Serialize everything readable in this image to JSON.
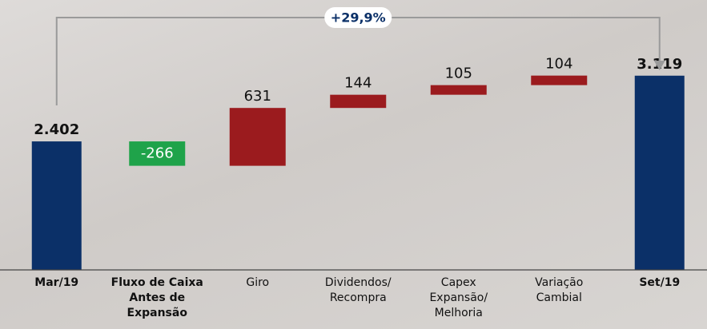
{
  "chart_data": {
    "type": "waterfall",
    "categories": [
      "Mar/19",
      "Fluxo de Caixa\nAntes de\nExpansão",
      "Giro",
      "Dividendos/\nRecompra",
      "Capex\nExpansão/\nMelhoria",
      "Variação\nCambial",
      "Set/19"
    ],
    "values": [
      2402,
      -266,
      631,
      144,
      105,
      104,
      3119
    ],
    "value_labels": [
      "2.402",
      "-266",
      "631",
      "144",
      "105",
      "104",
      "3.119"
    ],
    "measure": [
      "total",
      "relative",
      "relative",
      "relative",
      "relative",
      "relative",
      "total"
    ],
    "colors": [
      "#0b3068",
      "#1fa34a",
      "#9b1b1e",
      "#9b1b1e",
      "#9b1b1e",
      "#9b1b1e",
      "#0b3068"
    ],
    "category_bold": [
      true,
      true,
      false,
      false,
      false,
      false,
      true
    ],
    "ylim": [
      1000,
      3300
    ],
    "annotation": "+29,9%"
  }
}
